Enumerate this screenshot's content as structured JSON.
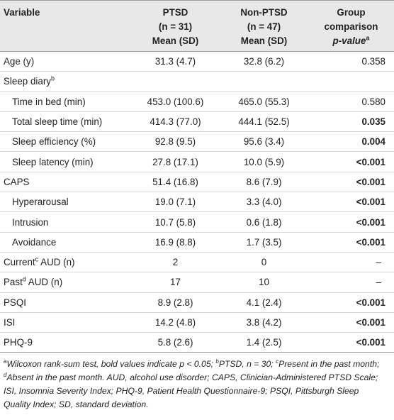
{
  "header": {
    "variable": "Variable",
    "ptsd": [
      "PTSD",
      "(n = 31)",
      "Mean (SD)"
    ],
    "nonptsd": [
      "Non-PTSD",
      "(n = 47)",
      "Mean (SD)"
    ],
    "pvalue": [
      "Group",
      "comparison",
      "p-value",
      "a"
    ]
  },
  "rows": [
    {
      "label": "Age (y)",
      "sup": "",
      "suffix": "",
      "indent": false,
      "ptsd": "31.3 (4.7)",
      "non": "32.8 (6.2)",
      "p": "0.358",
      "bold": false
    },
    {
      "label": "Sleep diary",
      "sup": "b",
      "suffix": "",
      "indent": false,
      "ptsd": "",
      "non": "",
      "p": "",
      "bold": false
    },
    {
      "label": "Time in bed (min)",
      "sup": "",
      "suffix": "",
      "indent": true,
      "ptsd": "453.0 (100.6)",
      "non": "465.0 (55.3)",
      "p": "0.580",
      "bold": false
    },
    {
      "label": "Total sleep time (min)",
      "sup": "",
      "suffix": "",
      "indent": true,
      "ptsd": "414.3 (77.0)",
      "non": "444.1 (52.5)",
      "p": "0.035",
      "bold": true
    },
    {
      "label": "Sleep efficiency (%)",
      "sup": "",
      "suffix": "",
      "indent": true,
      "ptsd": "92.8 (9.5)",
      "non": "95.6 (3.4)",
      "p": "0.004",
      "bold": true
    },
    {
      "label": "Sleep latency (min)",
      "sup": "",
      "suffix": "",
      "indent": true,
      "ptsd": "27.8 (17.1)",
      "non": "10.0 (5.9)",
      "p": "<0.001",
      "bold": true
    },
    {
      "label": "CAPS",
      "sup": "",
      "suffix": "",
      "indent": false,
      "ptsd": "51.4 (16.8)",
      "non": "8.6 (7.9)",
      "p": "<0.001",
      "bold": true
    },
    {
      "label": "Hyperarousal",
      "sup": "",
      "suffix": "",
      "indent": true,
      "ptsd": "19.0 (7.1)",
      "non": "3.3 (4.0)",
      "p": "<0.001",
      "bold": true
    },
    {
      "label": "Intrusion",
      "sup": "",
      "suffix": "",
      "indent": true,
      "ptsd": "10.7 (5.8)",
      "non": "0.6 (1.8)",
      "p": "<0.001",
      "bold": true
    },
    {
      "label": "Avoidance",
      "sup": "",
      "suffix": "",
      "indent": true,
      "ptsd": "16.9 (8.8)",
      "non": "1.7 (3.5)",
      "p": "<0.001",
      "bold": true
    },
    {
      "label": "Current",
      "sup": "c",
      "suffix": " AUD (n)",
      "indent": false,
      "ptsd": "2",
      "non": "0",
      "p": "–",
      "bold": false
    },
    {
      "label": "Past",
      "sup": "d",
      "suffix": " AUD (n)",
      "indent": false,
      "ptsd": "17",
      "non": "10",
      "p": "–",
      "bold": false
    },
    {
      "label": "PSQI",
      "sup": "",
      "suffix": "",
      "indent": false,
      "ptsd": "8.9 (2.8)",
      "non": "4.1 (2.4)",
      "p": "<0.001",
      "bold": true
    },
    {
      "label": "ISI",
      "sup": "",
      "suffix": "",
      "indent": false,
      "ptsd": "14.2 (4.8)",
      "non": "3.8 (4.2)",
      "p": "<0.001",
      "bold": true
    },
    {
      "label": "PHQ-9",
      "sup": "",
      "suffix": "",
      "indent": false,
      "ptsd": "5.8 (2.6)",
      "non": "1.4 (2.5)",
      "p": "<0.001",
      "bold": true
    }
  ],
  "footnote": [
    {
      "sup": "a",
      "text": "Wilcoxon rank-sum test, bold values indicate p < 0.05; "
    },
    {
      "sup": "b",
      "text": "PTSD, n = 30; "
    },
    {
      "sup": "c",
      "text": "Present in the past month; "
    },
    {
      "sup": "d",
      "text": "Absent in the past month. AUD, alcohol use disorder; CAPS, Clinician-Administered PTSD Scale; ISI, Insomnia Severity Index; PHQ-9, Patient Health Questionnaire-9; PSQI, Pittsburgh Sleep Quality Index; SD, standard deviation."
    }
  ]
}
